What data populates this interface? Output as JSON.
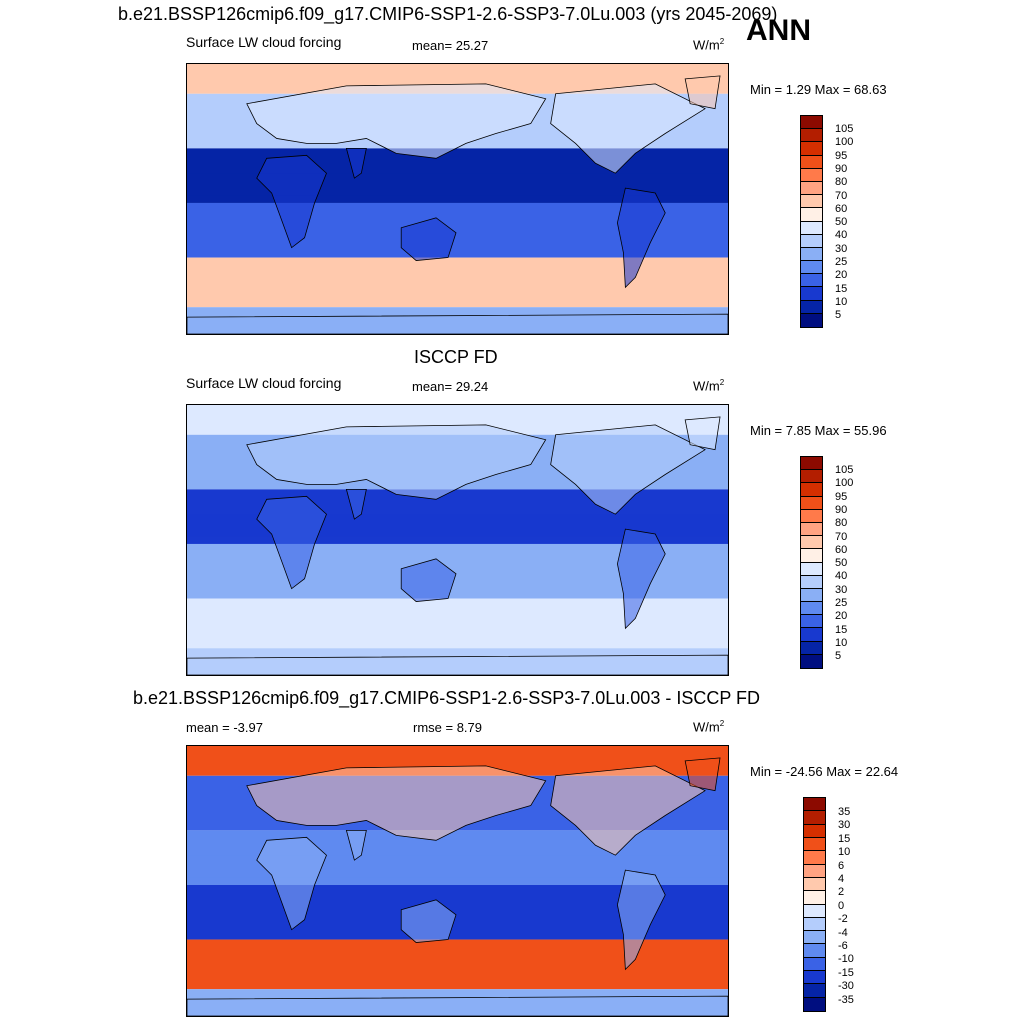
{
  "page_title": "b.e21.BSSP126cmip6.f09_g17.CMIP6-SSP1-2.6-SSP3-7.0Lu.003 (yrs 2045-2069)",
  "season": "ANN",
  "panels": [
    {
      "heading": "",
      "variable": "Surface LW cloud forcing",
      "center_stat": "mean=  25.27",
      "units": "W/m",
      "units_sup": "2",
      "left_stat": "",
      "minmax": "Min =   1.29 Max =  68.63"
    },
    {
      "heading": "ISCCP FD",
      "variable": "Surface LW cloud forcing",
      "center_stat": "mean=  29.24",
      "units": "W/m",
      "units_sup": "2",
      "left_stat": "",
      "minmax": "Min =   7.85 Max =  55.96"
    },
    {
      "heading": "b.e21.BSSP126cmip6.f09_g17.CMIP6-SSP1-2.6-SSP3-7.0Lu.003 - ISCCP FD",
      "variable": "",
      "center_stat": "rmse =   8.79",
      "units": "W/m",
      "units_sup": "2",
      "left_stat": "mean =  -3.97",
      "minmax": "Min = -24.56 Max =  22.64"
    }
  ],
  "colorbars": {
    "abs_levels": [
      "105",
      "100",
      "95",
      "90",
      "80",
      "70",
      "60",
      "50",
      "40",
      "30",
      "25",
      "20",
      "15",
      "10",
      "5"
    ],
    "diff_levels": [
      "35",
      "30",
      "15",
      "10",
      "6",
      "4",
      "2",
      "0",
      "-2",
      "-4",
      "-6",
      "-10",
      "-15",
      "-30",
      "-35"
    ],
    "colors": [
      "#8c0a00",
      "#b31e00",
      "#d52f00",
      "#f05019",
      "#ff7a4a",
      "#ffa382",
      "#ffc9ad",
      "#fff0e6",
      "#dde9ff",
      "#b4cdfc",
      "#8aaff5",
      "#5f8af0",
      "#3a62e6",
      "#1839cf",
      "#0524a6",
      "#000e80"
    ]
  },
  "map_fields": {
    "model": {
      "arctic": "#ffc9ad",
      "n_mid": "#b4cdfc",
      "tropics": "#0524a6",
      "s_mid": "#3a62e6",
      "s_ocean": "#ffc9ad",
      "antarctic": "#8aaff5",
      "land_north": "#dde9ff",
      "land_trop": "#1839cf"
    },
    "obs": {
      "arctic": "#dde9ff",
      "n_mid": "#8aaff5",
      "tropics": "#1839cf",
      "s_mid": "#8aaff5",
      "s_ocean": "#dde9ff",
      "antarctic": "#b4cdfc",
      "land_north": "#b4cdfc",
      "land_trop": "#3a62e6"
    },
    "diff": {
      "arctic": "#f05019",
      "n_mid": "#3a62e6",
      "tropics": "#5f8af0",
      "s_mid": "#1839cf",
      "s_ocean": "#f05019",
      "antarctic": "#8aaff5",
      "land_north": "#ffc9ad",
      "land_trop": "#8aaff5"
    }
  }
}
